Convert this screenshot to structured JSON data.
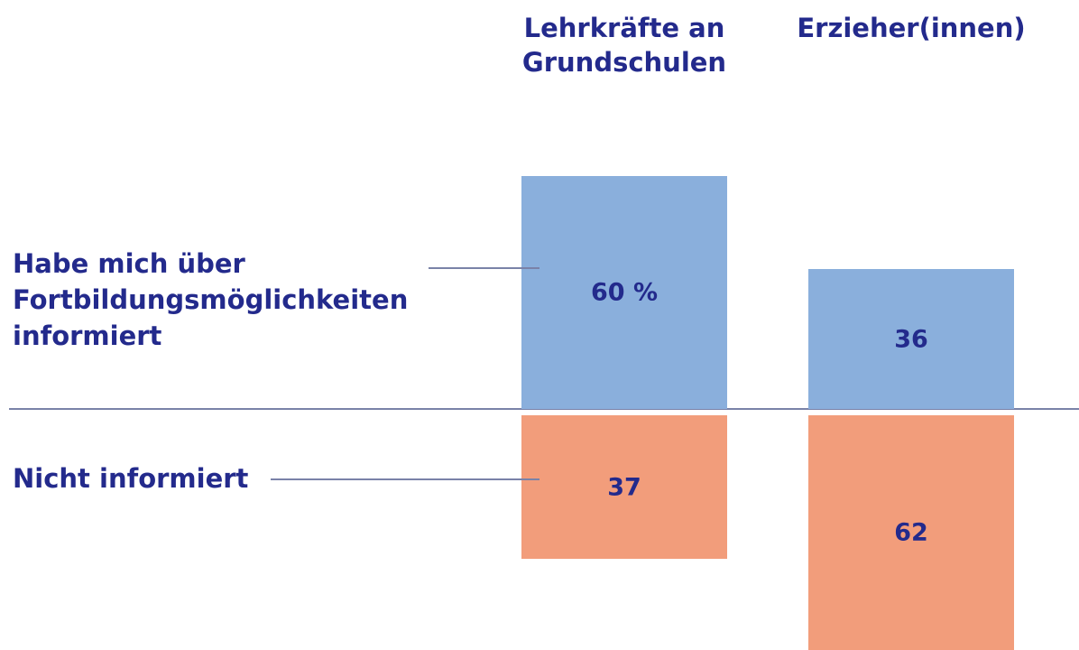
{
  "chart_data": {
    "type": "diverging-bar",
    "categories": [
      "Lehrkräfte an Grundschulen",
      "Erzieher(innen)"
    ],
    "series": [
      {
        "name": "Habe mich über Fortbildungsmöglichkeiten informiert",
        "color": "#8aafdc",
        "values": [
          60,
          36
        ],
        "value_labels": [
          "60 %",
          "36"
        ]
      },
      {
        "name": "Nicht informiert",
        "color": "#f29d7b",
        "values": [
          37,
          62
        ],
        "value_labels": [
          "37",
          "62"
        ]
      }
    ]
  }
}
